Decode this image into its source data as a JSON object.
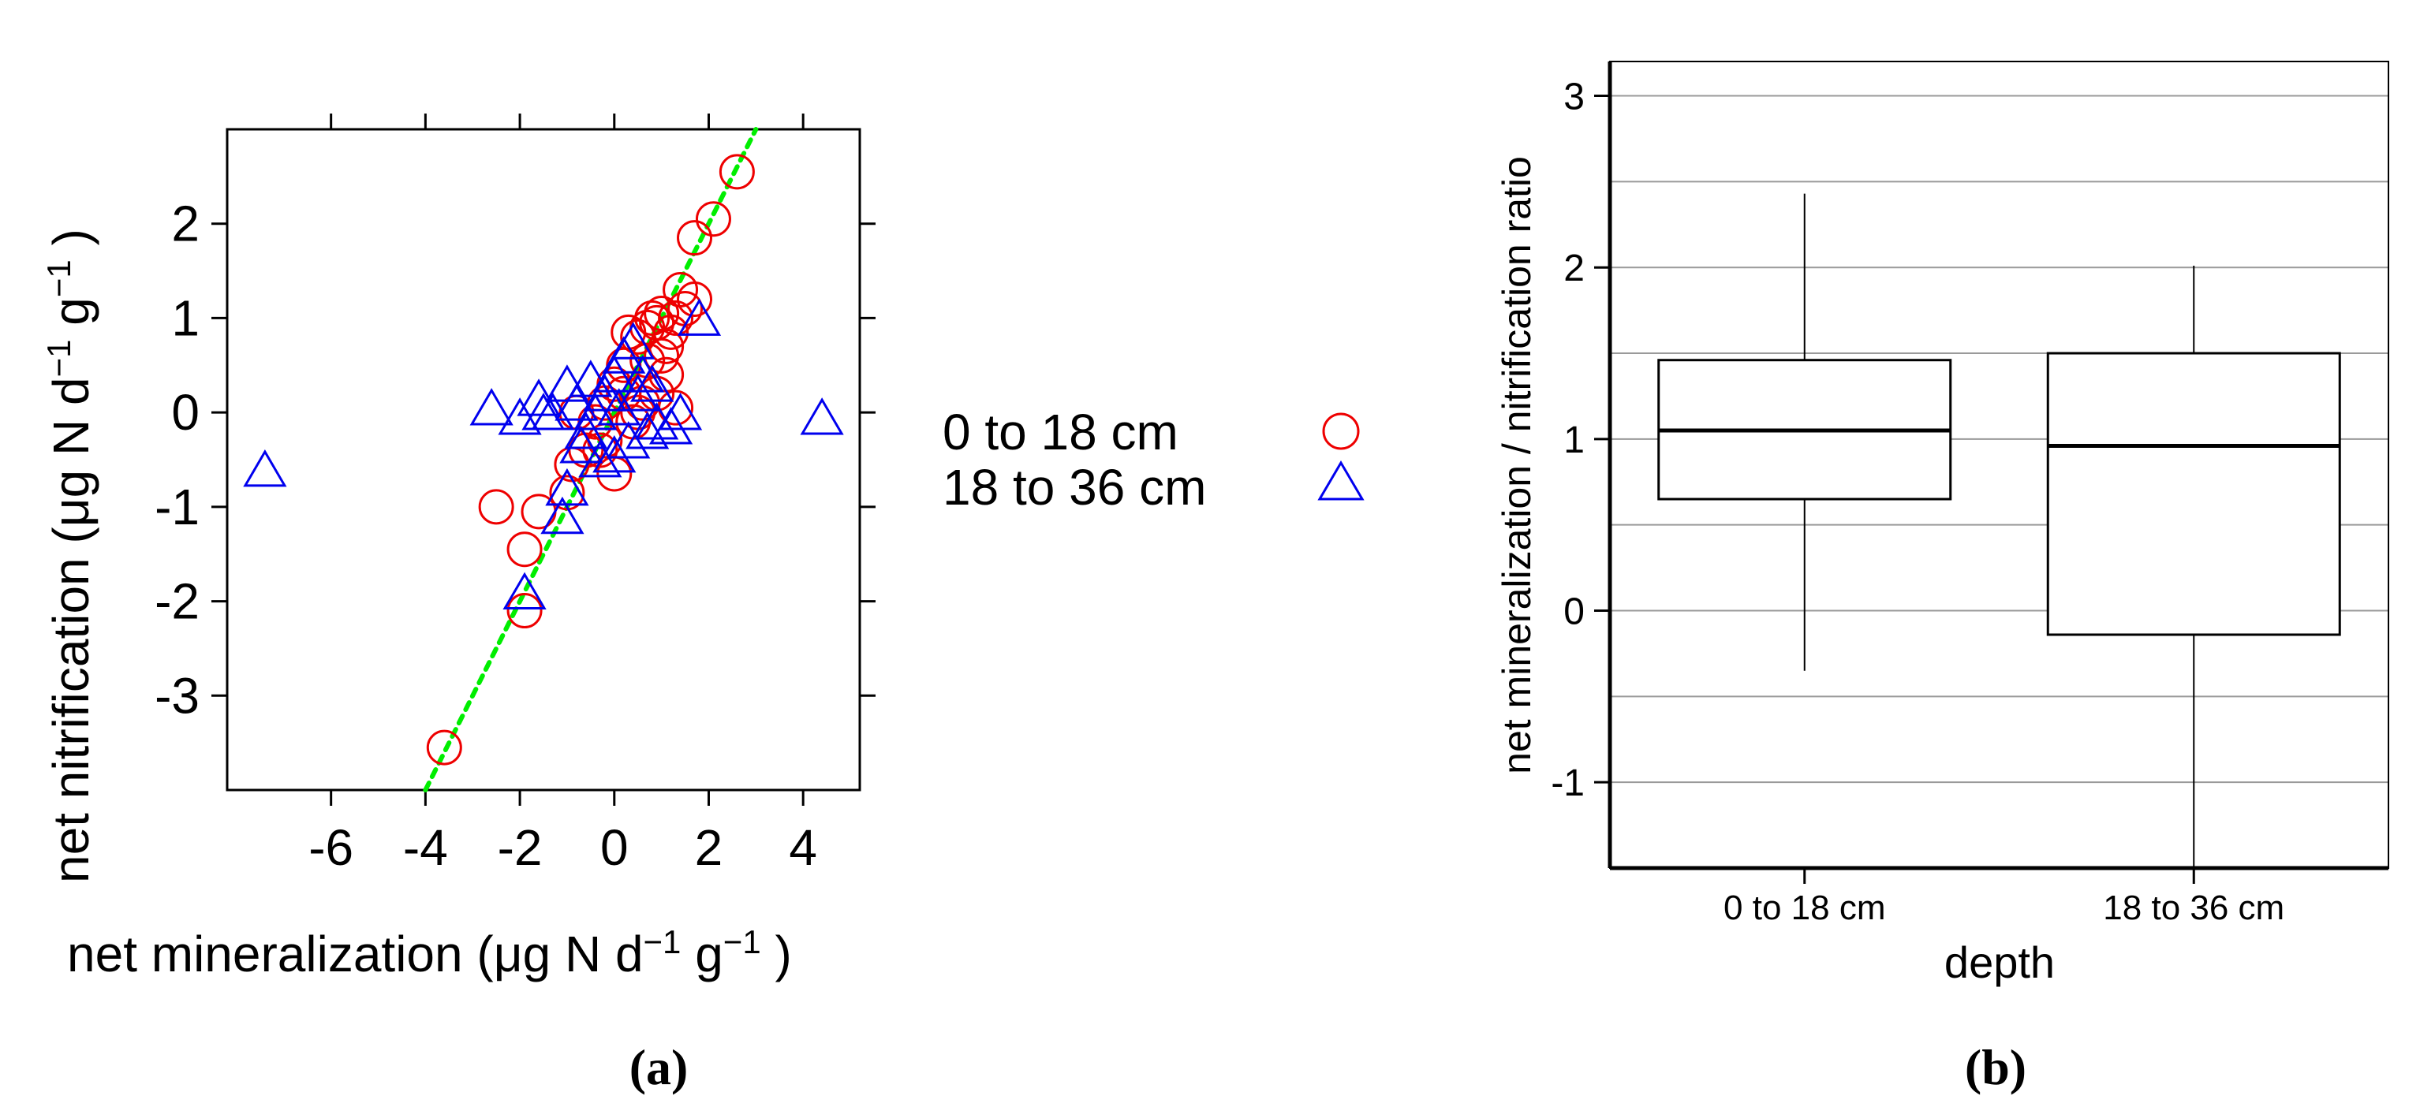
{
  "chart_data": [
    {
      "type": "scatter",
      "panel_label": "(a)",
      "xlabel": "net mineralization (μg N d",
      "xlabel_sup1": "−1",
      "xlabel_mid": " g",
      "xlabel_sup2": "−1",
      "xlabel_end": " )",
      "ylabel": "net nitrification (μg N d",
      "ylabel_sup1": "−1",
      "ylabel_mid": " g",
      "ylabel_sup2": "−1",
      "ylabel_end": " )",
      "xlim": [
        -8.2,
        5.2
      ],
      "ylim": [
        -4.0,
        3.0
      ],
      "x_ticks": [
        -6,
        -4,
        -2,
        0,
        2,
        4
      ],
      "x_tick_labels": [
        "-6",
        "-4",
        "-2",
        "0",
        "2",
        "4"
      ],
      "y_ticks": [
        -3,
        -2,
        -1,
        0,
        1,
        2
      ],
      "y_tick_labels": [
        "-3",
        "-2",
        "-1",
        "0",
        "1",
        "2"
      ],
      "fit_line": {
        "slope": 1.0,
        "intercept": 0.0,
        "color": "#00ee00",
        "style": "dotted"
      },
      "legend": [
        {
          "label": "0 to 18 cm",
          "marker": "circle",
          "color": "#ee0000"
        },
        {
          "label": "18 to 36 cm",
          "marker": "triangle",
          "color": "#0000ee"
        }
      ],
      "series": [
        {
          "name": "0 to 18 cm",
          "marker": "circle",
          "color": "#ee0000",
          "points": [
            [
              -3.6,
              -3.55
            ],
            [
              -2.5,
              -1.0
            ],
            [
              -1.9,
              -1.45
            ],
            [
              -1.9,
              -2.1
            ],
            [
              -1.6,
              -1.05
            ],
            [
              -1.0,
              -0.85
            ],
            [
              -0.9,
              -0.55
            ],
            [
              -0.6,
              -0.4
            ],
            [
              -0.4,
              -0.1
            ],
            [
              -0.2,
              0.1
            ],
            [
              0.0,
              0.3
            ],
            [
              0.2,
              0.5
            ],
            [
              0.3,
              0.85
            ],
            [
              0.5,
              0.8
            ],
            [
              0.7,
              0.9
            ],
            [
              0.8,
              1.0
            ],
            [
              0.9,
              0.95
            ],
            [
              1.0,
              1.05
            ],
            [
              1.1,
              0.7
            ],
            [
              1.2,
              0.85
            ],
            [
              1.3,
              1.0
            ],
            [
              1.4,
              1.3
            ],
            [
              1.5,
              1.1
            ],
            [
              1.7,
              1.2
            ],
            [
              1.7,
              1.85
            ],
            [
              2.1,
              2.05
            ],
            [
              2.6,
              2.55
            ],
            [
              1.1,
              0.4
            ],
            [
              0.9,
              0.2
            ],
            [
              1.3,
              0.05
            ],
            [
              0.6,
              0.1
            ],
            [
              0.0,
              -0.65
            ],
            [
              -0.3,
              -0.4
            ],
            [
              0.4,
              -0.1
            ],
            [
              -0.8,
              0.0
            ],
            [
              0.2,
              0.2
            ],
            [
              0.7,
              0.55
            ],
            [
              1.0,
              0.6
            ],
            [
              -0.2,
              -0.3
            ],
            [
              0.5,
              0.0
            ]
          ]
        },
        {
          "name": "18 to 36 cm",
          "marker": "triangle",
          "color": "#0000ee",
          "points": [
            [
              -7.4,
              -0.6
            ],
            [
              4.4,
              -0.05
            ],
            [
              -2.6,
              0.05
            ],
            [
              -2.0,
              -0.05
            ],
            [
              -1.6,
              0.15
            ],
            [
              -1.3,
              0.0
            ],
            [
              -1.0,
              0.3
            ],
            [
              -0.8,
              0.1
            ],
            [
              -0.6,
              -0.2
            ],
            [
              -0.4,
              0.0
            ],
            [
              -0.2,
              0.2
            ],
            [
              0.0,
              0.4
            ],
            [
              0.2,
              0.6
            ],
            [
              0.4,
              0.75
            ],
            [
              0.5,
              0.2
            ],
            [
              0.7,
              -0.2
            ],
            [
              0.9,
              -0.1
            ],
            [
              1.2,
              -0.15
            ],
            [
              1.4,
              0.0
            ],
            [
              0.3,
              -0.3
            ],
            [
              0.0,
              -0.45
            ],
            [
              -0.3,
              -0.5
            ],
            [
              -1.0,
              -0.8
            ],
            [
              -1.1,
              -1.1
            ],
            [
              -1.9,
              -1.9
            ],
            [
              1.8,
              1.0
            ],
            [
              0.6,
              0.4
            ],
            [
              -0.5,
              0.35
            ],
            [
              -1.5,
              0.0
            ],
            [
              0.1,
              0.05
            ],
            [
              -0.7,
              -0.35
            ],
            [
              0.8,
              0.3
            ]
          ]
        }
      ]
    },
    {
      "type": "box",
      "panel_label": "(b)",
      "xlabel": "depth",
      "ylabel": "net mineralization / nitrification ratio",
      "ylim": [
        -1.5,
        3.2
      ],
      "y_ticks": [
        -1,
        0,
        1,
        2,
        3
      ],
      "y_tick_labels": [
        "-1",
        "0",
        "1",
        "2",
        "3"
      ],
      "gridlines": [
        -1.5,
        -1.0,
        -0.5,
        0.0,
        0.5,
        1.0,
        1.5,
        2.0,
        2.5,
        3.0
      ],
      "categories": [
        "0 to 18 cm",
        "18 to 36 cm"
      ],
      "boxes": [
        {
          "name": "0 to 18 cm",
          "whisker_low": -0.35,
          "q1": 0.65,
          "median": 1.05,
          "q3": 1.46,
          "whisker_high": 2.43
        },
        {
          "name": "18 to 36 cm",
          "whisker_low": -1.5,
          "q1": -0.14,
          "median": 0.96,
          "q3": 1.5,
          "whisker_high": 2.01
        }
      ]
    }
  ]
}
